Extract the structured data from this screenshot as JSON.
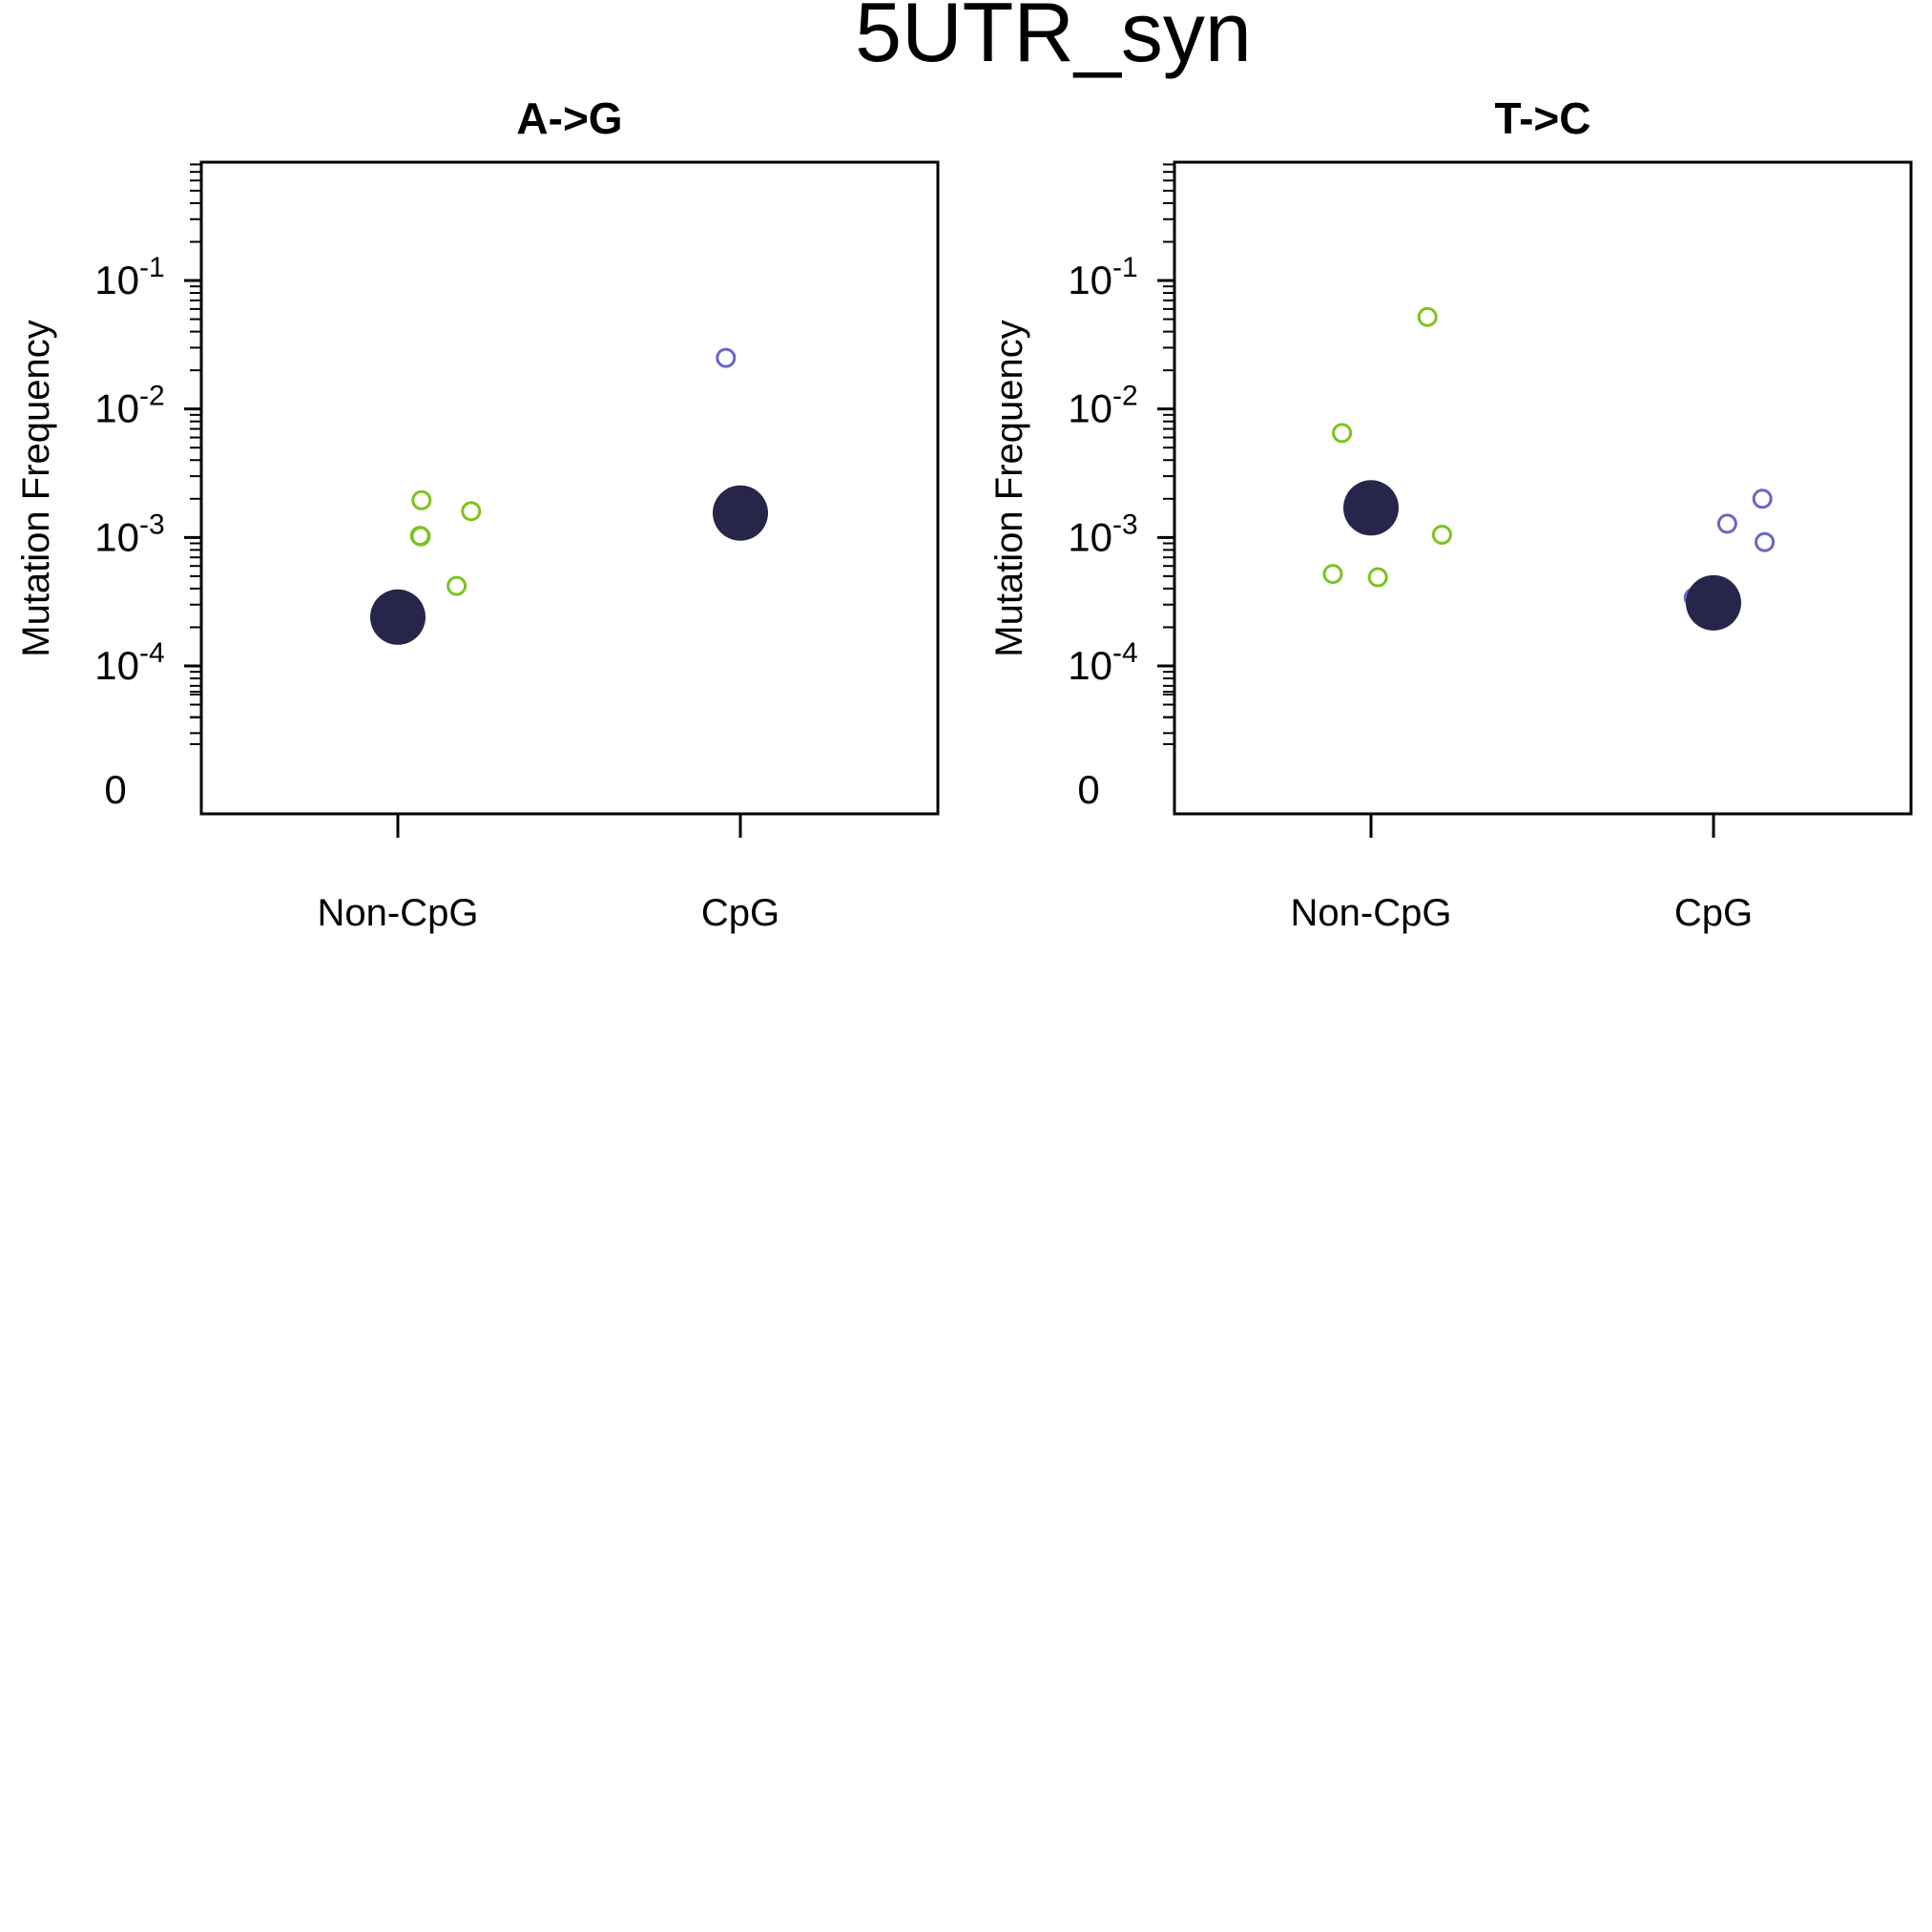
{
  "chart_data": [
    {
      "type": "scatter",
      "title": "A->G",
      "ylabel": "Mutation Frequency",
      "yscale": "log",
      "yticks": [
        {
          "value": 0.1,
          "base": "10",
          "exp": "-1"
        },
        {
          "value": 0.01,
          "base": "10",
          "exp": "-2"
        },
        {
          "value": 0.001,
          "base": "10",
          "exp": "-3"
        },
        {
          "value": 0.0001,
          "base": "10",
          "exp": "-4"
        },
        {
          "value": 0,
          "base": "0",
          "exp": ""
        }
      ],
      "categories": [
        "Non-CpG",
        "CpG"
      ],
      "colors": {
        "Non-CpG": "#7dc31e",
        "CpG": "#6a66c4",
        "mean": "#27264a"
      },
      "points": [
        {
          "category": "Non-CpG",
          "y": 0.00195
        },
        {
          "category": "Non-CpG",
          "y": 0.00102
        },
        {
          "category": "Non-CpG",
          "y": 0.00103
        },
        {
          "category": "Non-CpG",
          "y": 0.0016
        },
        {
          "category": "Non-CpG",
          "y": 0.00042
        },
        {
          "category": "CpG",
          "y": 0.025
        }
      ],
      "means": [
        {
          "category": "Non-CpG",
          "y": 0.00024
        },
        {
          "category": "CpG",
          "y": 0.00155
        }
      ]
    },
    {
      "type": "scatter",
      "title": "T->C",
      "ylabel": "Mutation Frequency",
      "yscale": "log",
      "yticks": [
        {
          "value": 0.1,
          "base": "10",
          "exp": "-1"
        },
        {
          "value": 0.01,
          "base": "10",
          "exp": "-2"
        },
        {
          "value": 0.001,
          "base": "10",
          "exp": "-3"
        },
        {
          "value": 0.0001,
          "base": "10",
          "exp": "-4"
        },
        {
          "value": 0,
          "base": "0",
          "exp": ""
        }
      ],
      "categories": [
        "Non-CpG",
        "CpG"
      ],
      "colors": {
        "Non-CpG": "#7dc31e",
        "CpG": "#6a66c4",
        "mean": "#27264a"
      },
      "points": [
        {
          "category": "Non-CpG",
          "y": 0.0065
        },
        {
          "category": "Non-CpG",
          "y": 0.052
        },
        {
          "category": "Non-CpG",
          "y": 0.00052
        },
        {
          "category": "Non-CpG",
          "y": 0.00049
        },
        {
          "category": "Non-CpG",
          "y": 0.00105
        },
        {
          "category": "CpG",
          "y": 0.00034
        },
        {
          "category": "CpG",
          "y": 0.00128
        },
        {
          "category": "CpG",
          "y": 0.002
        },
        {
          "category": "CpG",
          "y": 0.00092
        }
      ],
      "means": [
        {
          "category": "Non-CpG",
          "y": 0.0017
        },
        {
          "category": "CpG",
          "y": 0.00031
        }
      ]
    }
  ],
  "figure_title": "5UTR_syn"
}
